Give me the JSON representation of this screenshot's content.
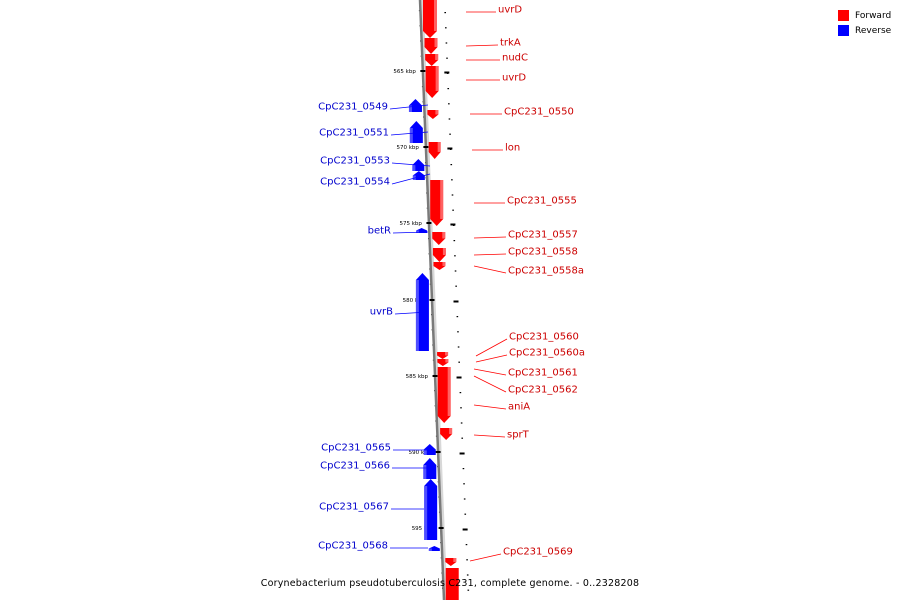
{
  "legend": {
    "forward_label": "Forward",
    "reverse_label": "Reverse",
    "forward_color": "#ff0000",
    "reverse_color": "#0000ff"
  },
  "caption": "Corynebacterium pseudotuberculosis C231, complete genome. - 0..2328208",
  "ruler": {
    "ticks": [
      {
        "label": "565 kbp"
      },
      {
        "label": "570 kbp"
      },
      {
        "label": "575 kbp"
      },
      {
        "label": "580 kbp"
      },
      {
        "label": "585 kbp"
      },
      {
        "label": "590 kbp"
      },
      {
        "label": "595 kbp"
      }
    ]
  },
  "forward_genes": [
    {
      "name": "uvrD"
    },
    {
      "name": "trkA"
    },
    {
      "name": "nudC"
    },
    {
      "name": "uvrD"
    },
    {
      "name": "CpC231_0550"
    },
    {
      "name": "lon"
    },
    {
      "name": "CpC231_0555"
    },
    {
      "name": "CpC231_0557"
    },
    {
      "name": "CpC231_0558"
    },
    {
      "name": "CpC231_0558a"
    },
    {
      "name": "CpC231_0560"
    },
    {
      "name": "CpC231_0560a"
    },
    {
      "name": "CpC231_0561"
    },
    {
      "name": "CpC231_0562"
    },
    {
      "name": "aniA"
    },
    {
      "name": "sprT"
    },
    {
      "name": "CpC231_0569"
    }
  ],
  "reverse_genes": [
    {
      "name": "CpC231_0549"
    },
    {
      "name": "CpC231_0551"
    },
    {
      "name": "CpC231_0553"
    },
    {
      "name": "CpC231_0554"
    },
    {
      "name": "betR"
    },
    {
      "name": "uvrB"
    },
    {
      "name": "CpC231_0565"
    },
    {
      "name": "CpC231_0566"
    },
    {
      "name": "CpC231_0567"
    },
    {
      "name": "CpC231_0568"
    }
  ]
}
